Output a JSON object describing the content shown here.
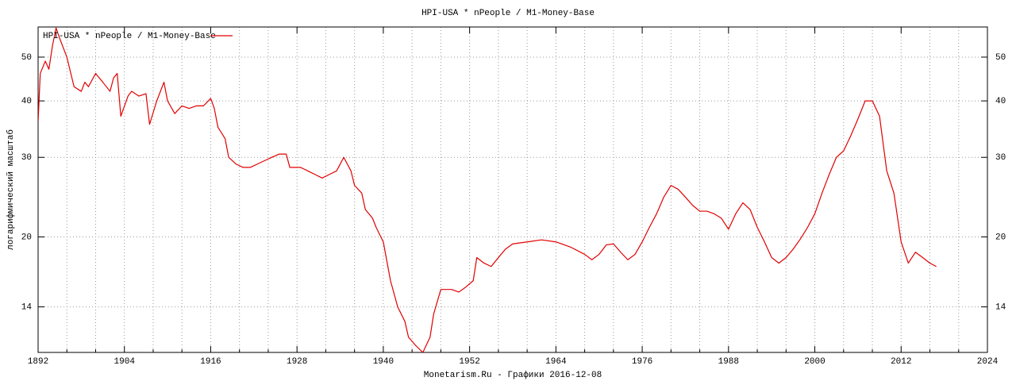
{
  "chart_data": {
    "type": "line",
    "title": "HPI-USA * nPeople / M1-Money-Base",
    "y_label": "логарифмический масштаб",
    "x_label": "Monetarism.Ru - Графики  2016-12-08",
    "log_y": true,
    "grid": true,
    "mirror_y_ticks": true,
    "legend_position": "top-left",
    "xlim": [
      1892,
      2024
    ],
    "xticks": [
      1892,
      1904,
      1916,
      1928,
      1940,
      1952,
      1964,
      1976,
      1988,
      2000,
      2012,
      2024
    ],
    "xminorticks": [
      1896,
      1900,
      1908,
      1912,
      1920,
      1924,
      1932,
      1936,
      1944,
      1948,
      1956,
      1960,
      1968,
      1972,
      1980,
      1984,
      1992,
      1996,
      2004,
      2008,
      2016,
      2020
    ],
    "ylim": [
      11.1,
      58.3
    ],
    "yticks": [
      14,
      20,
      30,
      40,
      50
    ],
    "x": [
      1892.0,
      1892.3,
      1893,
      1893.5,
      1894,
      1894.5,
      1895,
      1896,
      1897,
      1898,
      1898.5,
      1899,
      1900,
      1901,
      1902,
      1902.5,
      1903,
      1903.5,
      1904.5,
      1905,
      1906,
      1907,
      1907.5,
      1908.5,
      1909.5,
      1910,
      1911,
      1912,
      1913,
      1914,
      1915,
      1916,
      1916.5,
      1917,
      1918,
      1918.5,
      1919.5,
      1920.5,
      1921.5,
      1922.5,
      1923.5,
      1924.5,
      1925.5,
      1926.5,
      1927,
      1928.5,
      1929.5,
      1930.5,
      1931.5,
      1932.5,
      1933.5,
      1934.5,
      1935.5,
      1936,
      1937,
      1937.5,
      1938.5,
      1939,
      1940,
      1941,
      1942,
      1943,
      1943.5,
      1944.5,
      1945.5,
      1946.5,
      1947,
      1948,
      1949.5,
      1950.5,
      1951.5,
      1952.5,
      1953,
      1954,
      1955,
      1956,
      1957,
      1958,
      1960,
      1962,
      1964,
      1966,
      1968,
      1969,
      1970,
      1971,
      1972,
      1973,
      1974,
      1975,
      1976,
      1977,
      1978,
      1979,
      1980,
      1981,
      1982,
      1983,
      1984,
      1985,
      1986,
      1987,
      1988,
      1989,
      1990,
      1991,
      1992,
      1993,
      1994,
      1995,
      1996,
      1997,
      1998,
      1999,
      2000,
      2001,
      2002,
      2003,
      2004,
      2005,
      2006,
      2007,
      2008,
      2009,
      2010,
      2011,
      2012,
      2013,
      2014,
      2015,
      2016,
      2016.9
    ],
    "series": [
      {
        "name": "HPI-USA * nPeople / M1-Money-Base",
        "color": "#e00000",
        "values": [
          36,
          46,
          49,
          47,
          53,
          58,
          55,
          50,
          43,
          42,
          44,
          43,
          46,
          44,
          42,
          45,
          46,
          37,
          41,
          42,
          41,
          41.5,
          35.5,
          40,
          44,
          40,
          37.5,
          39,
          38.5,
          39,
          39,
          40.5,
          38.5,
          35,
          33,
          30,
          29,
          28.5,
          28.5,
          29,
          29.5,
          30,
          30.5,
          30.5,
          28.5,
          28.5,
          28,
          27.5,
          27,
          27.5,
          28,
          30,
          28,
          26,
          25,
          23,
          22,
          21,
          19.5,
          16,
          14,
          13,
          12,
          11.5,
          11.1,
          12,
          13.5,
          15.3,
          15.3,
          15.1,
          15.5,
          16,
          18,
          17.5,
          17.2,
          18,
          18.8,
          19.3,
          19.5,
          19.7,
          19.5,
          19.0,
          18.3,
          17.8,
          18.3,
          19.2,
          19.3,
          18.5,
          17.8,
          18.3,
          19.5,
          21.0,
          22.5,
          24.5,
          26,
          25.5,
          24.5,
          23.5,
          22.8,
          22.8,
          22.5,
          22,
          20.8,
          22.5,
          23.8,
          23.0,
          21.0,
          19.5,
          18.0,
          17.5,
          18,
          18.8,
          19.8,
          21,
          22.5,
          25,
          27.5,
          30,
          31,
          33.5,
          36.5,
          40,
          40,
          37,
          28,
          25,
          19.5,
          17.5,
          18.5,
          18.0,
          17.5,
          17.2
        ]
      }
    ]
  }
}
